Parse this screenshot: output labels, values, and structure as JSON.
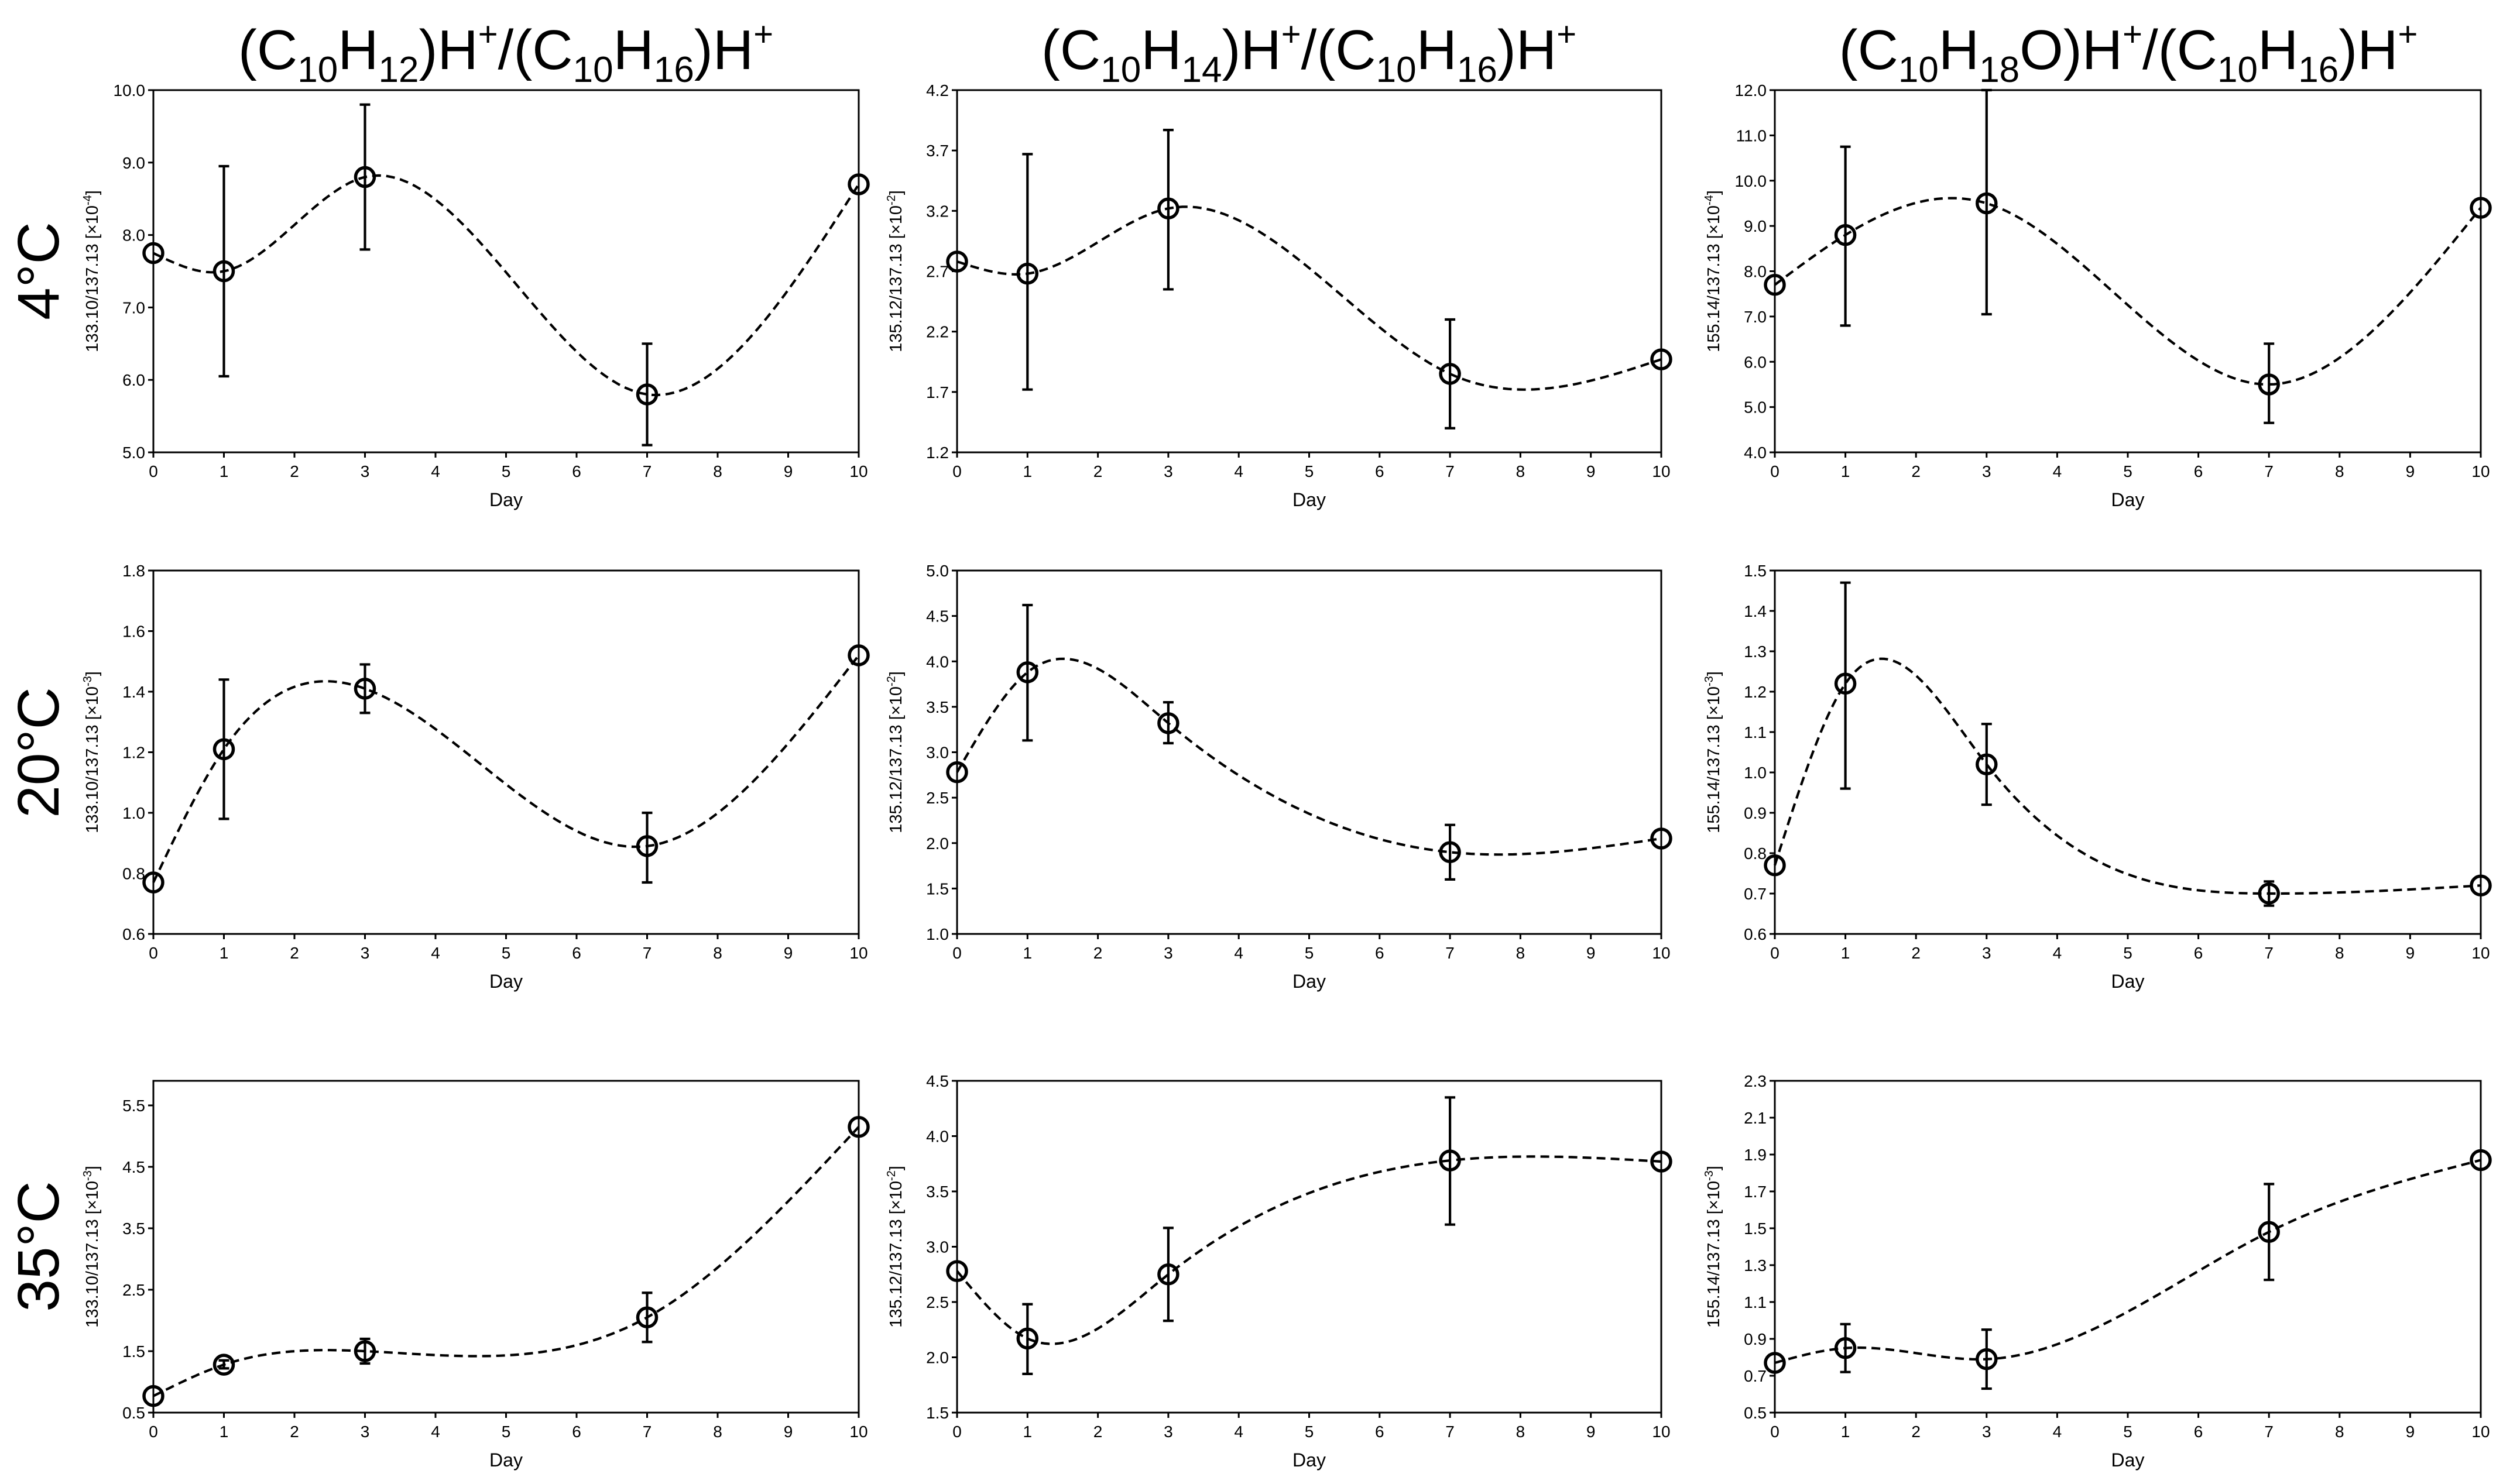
{
  "columns": [
    {
      "title": {
        "parts": [
          {
            "t": "(C"
          },
          {
            "t": "10",
            "k": "sub"
          },
          {
            "t": "H"
          },
          {
            "t": "12",
            "k": "sub"
          },
          {
            "t": ")H"
          },
          {
            "t": "+",
            "k": "sup"
          },
          {
            "t": "/(C"
          },
          {
            "t": "10",
            "k": "sub"
          },
          {
            "t": "H"
          },
          {
            "t": "16",
            "k": "sub"
          },
          {
            "t": ")H"
          },
          {
            "t": "+",
            "k": "sup"
          }
        ]
      }
    },
    {
      "title": {
        "parts": [
          {
            "t": "(C"
          },
          {
            "t": "10",
            "k": "sub"
          },
          {
            "t": "H"
          },
          {
            "t": "14",
            "k": "sub"
          },
          {
            "t": ")H"
          },
          {
            "t": "+",
            "k": "sup"
          },
          {
            "t": "/(C"
          },
          {
            "t": "10",
            "k": "sub"
          },
          {
            "t": "H"
          },
          {
            "t": "16",
            "k": "sub"
          },
          {
            "t": ")H"
          },
          {
            "t": "+",
            "k": "sup"
          }
        ]
      }
    },
    {
      "title": {
        "parts": [
          {
            "t": "(C"
          },
          {
            "t": "10",
            "k": "sub"
          },
          {
            "t": "H"
          },
          {
            "t": "18",
            "k": "sub"
          },
          {
            "t": "O)H"
          },
          {
            "t": "+",
            "k": "sup"
          },
          {
            "t": "/(C"
          },
          {
            "t": "10",
            "k": "sub"
          },
          {
            "t": "H"
          },
          {
            "t": "16",
            "k": "sub"
          },
          {
            "t": ")H"
          },
          {
            "t": "+",
            "k": "sup"
          }
        ]
      }
    }
  ],
  "rows": [
    "4°C",
    "20°C",
    "35°C"
  ],
  "chart_data": [
    {
      "type": "line",
      "row": "4°C",
      "column": 1,
      "xlabel": "Day",
      "ylabel": {
        "text": "133.10/137.13  [×10",
        "exp": "-4",
        "close": "]"
      },
      "x": [
        0,
        1,
        3,
        7,
        10
      ],
      "values": [
        7.75,
        7.5,
        8.8,
        5.8,
        8.7
      ],
      "yerr_low": [
        7.75,
        6.05,
        7.8,
        5.1,
        8.7
      ],
      "yerr_high": [
        7.75,
        8.95,
        9.8,
        6.5,
        8.7
      ],
      "xlim": [
        0,
        10
      ],
      "xticks": [
        "0",
        "1",
        "2",
        "3",
        "4",
        "5",
        "6",
        "7",
        "8",
        "9",
        "10"
      ],
      "ylim": [
        5.0,
        10.0
      ],
      "yticks": [
        "5.0",
        "6.0",
        "7.0",
        "8.0",
        "9.0",
        "10.0"
      ]
    },
    {
      "type": "line",
      "row": "4°C",
      "column": 2,
      "xlabel": "Day",
      "ylabel": {
        "text": "135.12/137.13  [×10",
        "exp": "-2",
        "close": "]"
      },
      "x": [
        0,
        1,
        3,
        7,
        10
      ],
      "values": [
        2.78,
        2.68,
        3.22,
        1.85,
        1.97
      ],
      "yerr_low": [
        2.78,
        1.72,
        2.55,
        1.4,
        1.97
      ],
      "yerr_high": [
        2.78,
        3.67,
        3.87,
        2.3,
        1.97
      ],
      "xlim": [
        0,
        10
      ],
      "xticks": [
        "0",
        "1",
        "2",
        "3",
        "4",
        "5",
        "6",
        "7",
        "8",
        "9",
        "10"
      ],
      "ylim": [
        1.2,
        4.2
      ],
      "yticks": [
        "1.2",
        "1.7",
        "2.2",
        "2.7",
        "3.2",
        "3.7",
        "4.2"
      ]
    },
    {
      "type": "line",
      "row": "4°C",
      "column": 3,
      "xlabel": "Day",
      "ylabel": {
        "text": "155.14/137.13  [×10",
        "exp": "-4",
        "close": "]"
      },
      "x": [
        0,
        1,
        3,
        7,
        10
      ],
      "values": [
        7.7,
        8.8,
        9.5,
        5.5,
        9.4
      ],
      "yerr_low": [
        7.7,
        6.8,
        7.05,
        4.65,
        9.4
      ],
      "yerr_high": [
        7.7,
        10.75,
        12.0,
        6.4,
        9.4
      ],
      "xlim": [
        0,
        10
      ],
      "xticks": [
        "0",
        "1",
        "2",
        "3",
        "4",
        "5",
        "6",
        "7",
        "8",
        "9",
        "10"
      ],
      "ylim": [
        4.0,
        12.0
      ],
      "yticks": [
        "4.0",
        "5.0",
        "6.0",
        "7.0",
        "8.0",
        "9.0",
        "10.0",
        "11.0",
        "12.0"
      ]
    },
    {
      "type": "line",
      "row": "20°C",
      "column": 1,
      "xlabel": "Day",
      "ylabel": {
        "text": "133.10/137.13  [×10",
        "exp": "-3",
        "close": "]"
      },
      "x": [
        0,
        1,
        3,
        7,
        10
      ],
      "values": [
        0.77,
        1.21,
        1.41,
        0.89,
        1.52
      ],
      "yerr_low": [
        0.77,
        0.98,
        1.33,
        0.77,
        1.52
      ],
      "yerr_high": [
        0.77,
        1.44,
        1.49,
        1.0,
        1.52
      ],
      "xlim": [
        0,
        10
      ],
      "xticks": [
        "0",
        "1",
        "2",
        "3",
        "4",
        "5",
        "6",
        "7",
        "8",
        "9",
        "10"
      ],
      "ylim": [
        0.6,
        1.8
      ],
      "yticks": [
        "0.6",
        "0.8",
        "1.0",
        "1.2",
        "1.4",
        "1.6",
        "1.8"
      ]
    },
    {
      "type": "line",
      "row": "20°C",
      "column": 2,
      "xlabel": "Day",
      "ylabel": {
        "text": "135.12/137.13  [×10",
        "exp": "-2",
        "close": "]"
      },
      "x": [
        0,
        1,
        3,
        7,
        10
      ],
      "values": [
        2.78,
        3.88,
        3.32,
        1.9,
        2.05
      ],
      "yerr_low": [
        2.78,
        3.13,
        3.1,
        1.6,
        2.05
      ],
      "yerr_high": [
        2.78,
        4.62,
        3.55,
        2.2,
        2.05
      ],
      "xlim": [
        0,
        10
      ],
      "xticks": [
        "0",
        "1",
        "2",
        "3",
        "4",
        "5",
        "6",
        "7",
        "8",
        "9",
        "10"
      ],
      "ylim": [
        1.0,
        5.0
      ],
      "yticks": [
        "1.0",
        "1.5",
        "2.0",
        "2.5",
        "3.0",
        "3.5",
        "4.0",
        "4.5",
        "5.0"
      ]
    },
    {
      "type": "line",
      "row": "20°C",
      "column": 3,
      "xlabel": "Day",
      "ylabel": {
        "text": "155.14/137.13  [×10",
        "exp": "-3",
        "close": "]"
      },
      "x": [
        0,
        1,
        3,
        7,
        10
      ],
      "values": [
        0.77,
        1.22,
        1.02,
        0.7,
        0.72
      ],
      "yerr_low": [
        0.77,
        0.96,
        0.92,
        0.67,
        0.72
      ],
      "yerr_high": [
        0.77,
        1.47,
        1.12,
        0.73,
        0.72
      ],
      "xlim": [
        0,
        10
      ],
      "xticks": [
        "0",
        "1",
        "2",
        "3",
        "4",
        "5",
        "6",
        "7",
        "8",
        "9",
        "10"
      ],
      "ylim": [
        0.6,
        1.5
      ],
      "yticks": [
        "0.6",
        "0.7",
        "0.8",
        "0.9",
        "1.0",
        "1.1",
        "1.2",
        "1.3",
        "1.4",
        "1.5"
      ]
    },
    {
      "type": "line",
      "row": "35°C",
      "column": 1,
      "xlabel": "Day",
      "ylabel": {
        "text": "133.10/137.13  [×10",
        "exp": "-3",
        "close": "]"
      },
      "x": [
        0,
        1,
        3,
        7,
        10
      ],
      "values": [
        0.77,
        1.28,
        1.5,
        2.05,
        5.15
      ],
      "yerr_low": [
        0.77,
        1.22,
        1.3,
        1.65,
        5.15
      ],
      "yerr_high": [
        0.77,
        1.35,
        1.7,
        2.45,
        5.15
      ],
      "xlim": [
        0,
        10
      ],
      "xticks": [
        "0",
        "1",
        "2",
        "3",
        "4",
        "5",
        "6",
        "7",
        "8",
        "9",
        "10"
      ],
      "ylim": [
        0.5,
        5.9
      ],
      "yticks": [
        "0.5",
        "1.5",
        "2.5",
        "3.5",
        "4.5",
        "5.5"
      ]
    },
    {
      "type": "line",
      "row": "35°C",
      "column": 2,
      "xlabel": "Day",
      "ylabel": {
        "text": "135.12/137.13  [×10",
        "exp": "-2",
        "close": "]"
      },
      "x": [
        0,
        1,
        3,
        7,
        10
      ],
      "values": [
        2.78,
        2.17,
        2.75,
        3.78,
        3.77
      ],
      "yerr_low": [
        2.78,
        1.85,
        2.33,
        3.2,
        3.77
      ],
      "yerr_high": [
        2.78,
        2.48,
        3.17,
        4.35,
        3.77
      ],
      "xlim": [
        0,
        10
      ],
      "xticks": [
        "0",
        "1",
        "2",
        "3",
        "4",
        "5",
        "6",
        "7",
        "8",
        "9",
        "10"
      ],
      "ylim": [
        1.5,
        4.5
      ],
      "yticks": [
        "1.5",
        "2.0",
        "2.5",
        "3.0",
        "3.5",
        "4.0",
        "4.5"
      ]
    },
    {
      "type": "line",
      "row": "35°C",
      "column": 3,
      "xlabel": "Day",
      "ylabel": {
        "text": "155.14/137.13  [×10",
        "exp": "-3",
        "close": "]"
      },
      "x": [
        0,
        1,
        3,
        7,
        10
      ],
      "values": [
        0.77,
        0.85,
        0.79,
        1.48,
        1.87
      ],
      "yerr_low": [
        0.77,
        0.72,
        0.63,
        1.22,
        1.87
      ],
      "yerr_high": [
        0.77,
        0.98,
        0.95,
        1.74,
        1.87
      ],
      "xlim": [
        0,
        10
      ],
      "xticks": [
        "0",
        "1",
        "2",
        "3",
        "4",
        "5",
        "6",
        "7",
        "8",
        "9",
        "10"
      ],
      "ylim": [
        0.5,
        2.3
      ],
      "yticks": [
        "0.5",
        "0.7",
        "0.9",
        "1.1",
        "1.3",
        "1.5",
        "1.7",
        "1.9",
        "2.1",
        "2.3"
      ]
    }
  ]
}
